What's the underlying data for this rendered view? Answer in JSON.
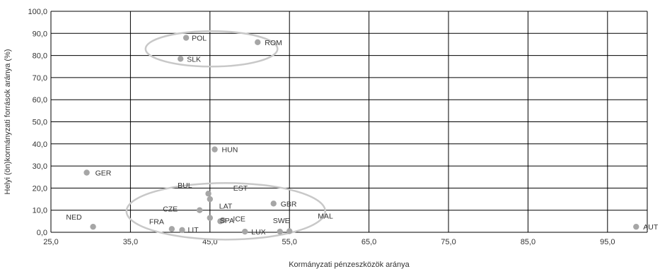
{
  "chart_data": {
    "type": "scatter",
    "title": "",
    "xlabel": "Kormányzati pénzeszközök aránya",
    "ylabel": "Helyi (ön)kormányzati források aránya (%)",
    "xlim": [
      25,
      100
    ],
    "ylim": [
      0,
      100
    ],
    "x_ticks": [
      "25,0",
      "35,0",
      "45,0",
      "55,0",
      "65,0",
      "75,0",
      "85,0",
      "95,0"
    ],
    "y_ticks": [
      "0,0",
      "10,0",
      "20,0",
      "30,0",
      "40,0",
      "50,0",
      "60,0",
      "70,0",
      "80,0",
      "90,0",
      "100,0"
    ],
    "grid": true,
    "marker_color": "#a6a6a6",
    "points": [
      {
        "label": "POL",
        "x": 42.0,
        "y": 88.0
      },
      {
        "label": "ROM",
        "x": 51.0,
        "y": 86.0
      },
      {
        "label": "SLK",
        "x": 41.3,
        "y": 78.5
      },
      {
        "label": "HUN",
        "x": 45.6,
        "y": 37.5
      },
      {
        "label": "GER",
        "x": 29.5,
        "y": 27.0
      },
      {
        "label": "BUL",
        "x": 44.8,
        "y": 17.5
      },
      {
        "label": "EST",
        "x": 45.0,
        "y": 15.0
      },
      {
        "label": "GBR",
        "x": 53.0,
        "y": 13.0
      },
      {
        "label": "CZE",
        "x": 43.7,
        "y": 10.0
      },
      {
        "label": "LAT",
        "x": 45.0,
        "y": 6.5
      },
      {
        "label": "ICE",
        "x": 46.3,
        "y": 5.0
      },
      {
        "label": "MAL",
        "x": 55.0,
        "y": 0.5
      },
      {
        "label": "NED",
        "x": 30.3,
        "y": 2.5
      },
      {
        "label": "FRA",
        "x": 40.2,
        "y": 1.5
      },
      {
        "label": "LIT",
        "x": 41.5,
        "y": 1.0
      },
      {
        "label": "SPA",
        "x": 46.6,
        "y": 5.5
      },
      {
        "label": "LUX",
        "x": 49.4,
        "y": 0.3
      },
      {
        "label": "SWE",
        "x": 53.8,
        "y": 0.3
      },
      {
        "label": "AUT",
        "x": 98.6,
        "y": 2.5
      }
    ],
    "ellipses": [
      {
        "name": "top-cluster-ellipse",
        "cx": 45.2,
        "cy": 83.0,
        "rx": 8.3,
        "ry": 8.0
      },
      {
        "name": "bottom-cluster-ellipse",
        "cx": 47.0,
        "cy": 9.5,
        "rx": 12.5,
        "ry": 12.8
      }
    ]
  }
}
